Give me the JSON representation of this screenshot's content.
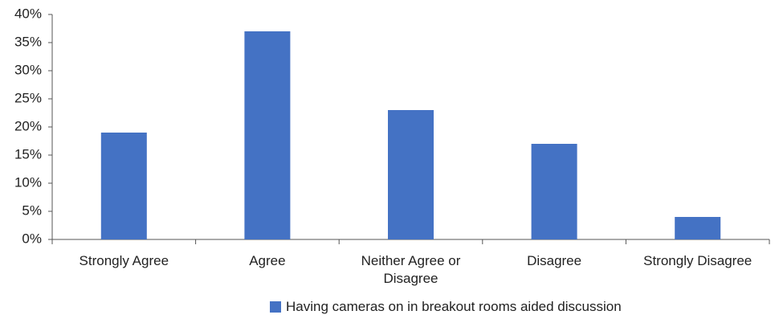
{
  "chart_data": {
    "type": "bar",
    "categories": [
      "Strongly Agree",
      "Agree",
      "Neither Agree or Disagree",
      "Disagree",
      "Strongly Disagree"
    ],
    "series": [
      {
        "name": "Having cameras on in breakout rooms aided discussion",
        "color": "#4472c4",
        "values": [
          19,
          37,
          23,
          17,
          4
        ]
      }
    ],
    "ylim": [
      0,
      40
    ],
    "yticks": [
      {
        "value": 0,
        "label": "0%"
      },
      {
        "value": 5,
        "label": "5%"
      },
      {
        "value": 10,
        "label": "10%"
      },
      {
        "value": 15,
        "label": "15%"
      },
      {
        "value": 20,
        "label": "20%"
      },
      {
        "value": 25,
        "label": "25%"
      },
      {
        "value": 30,
        "label": "30%"
      },
      {
        "value": 35,
        "label": "35%"
      },
      {
        "value": 40,
        "label": "40%"
      }
    ],
    "grid": false
  }
}
